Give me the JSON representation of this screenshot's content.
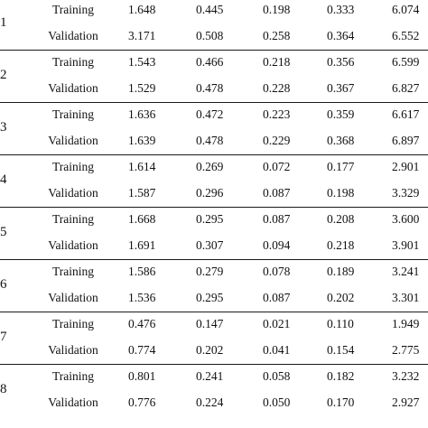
{
  "table": {
    "groups": [
      {
        "label": "1",
        "rows": [
          {
            "split": "Training",
            "values": [
              "1.648",
              "0.445",
              "0.198",
              "0.333",
              "6.074"
            ]
          },
          {
            "split": "Validation",
            "values": [
              "3.171",
              "0.508",
              "0.258",
              "0.364",
              "6.552"
            ]
          }
        ]
      },
      {
        "label": "2",
        "rows": [
          {
            "split": "Training",
            "values": [
              "1.543",
              "0.466",
              "0.218",
              "0.356",
              "6.599"
            ]
          },
          {
            "split": "Validation",
            "values": [
              "1.529",
              "0.478",
              "0.228",
              "0.367",
              "6.827"
            ]
          }
        ]
      },
      {
        "label": "3",
        "rows": [
          {
            "split": "Training",
            "values": [
              "1.636",
              "0.472",
              "0.223",
              "0.359",
              "6.617"
            ]
          },
          {
            "split": "Validation",
            "values": [
              "1.639",
              "0.478",
              "0.229",
              "0.368",
              "6.897"
            ]
          }
        ]
      },
      {
        "label": "4",
        "rows": [
          {
            "split": "Training",
            "values": [
              "1.614",
              "0.269",
              "0.072",
              "0.177",
              "2.901"
            ]
          },
          {
            "split": "Validation",
            "values": [
              "1.587",
              "0.296",
              "0.087",
              "0.198",
              "3.329"
            ]
          }
        ]
      },
      {
        "label": "5",
        "rows": [
          {
            "split": "Training",
            "values": [
              "1.668",
              "0.295",
              "0.087",
              "0.208",
              "3.600"
            ]
          },
          {
            "split": "Validation",
            "values": [
              "1.691",
              "0.307",
              "0.094",
              "0.218",
              "3.901"
            ]
          }
        ]
      },
      {
        "label": "6",
        "rows": [
          {
            "split": "Training",
            "values": [
              "1.586",
              "0.279",
              "0.078",
              "0.189",
              "3.241"
            ]
          },
          {
            "split": "Validation",
            "values": [
              "1.536",
              "0.295",
              "0.087",
              "0.202",
              "3.301"
            ]
          }
        ]
      },
      {
        "label": "7",
        "rows": [
          {
            "split": "Training",
            "values": [
              "0.476",
              "0.147",
              "0.021",
              "0.110",
              "1.949"
            ]
          },
          {
            "split": "Validation",
            "values": [
              "0.774",
              "0.202",
              "0.041",
              "0.154",
              "2.775"
            ]
          }
        ]
      },
      {
        "label": "8",
        "rows": [
          {
            "split": "Training",
            "values": [
              "0.801",
              "0.241",
              "0.058",
              "0.182",
              "3.232"
            ]
          },
          {
            "split": "Validation",
            "values": [
              "0.776",
              "0.224",
              "0.050",
              "0.170",
              "2.927"
            ]
          }
        ]
      }
    ]
  }
}
